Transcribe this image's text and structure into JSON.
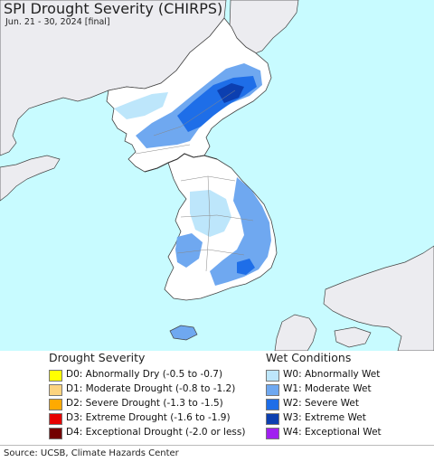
{
  "title": "SPI Drought Severity (CHIRPS)",
  "subtitle": "Jun. 21 - 30, 2024 [final]",
  "colors": {
    "ocean": "#c8fbff",
    "land_outside": "#ececf0",
    "normal": "#ffffff",
    "border": "#444444"
  },
  "legend": {
    "drought": {
      "heading": "Drought Severity",
      "items": [
        {
          "label": "D0: Abnormally Dry (-0.5 to -0.7)",
          "color": "#ffff00"
        },
        {
          "label": "D1: Moderate Drought (-0.8 to -1.2)",
          "color": "#fcd37f"
        },
        {
          "label": "D2: Severe Drought (-1.3 to -1.5)",
          "color": "#ffaa00"
        },
        {
          "label": "D3: Extreme Drought (-1.6 to -1.9)",
          "color": "#e60000"
        },
        {
          "label": "D4: Exceptional Drought (-2.0 or less)",
          "color": "#730000"
        }
      ]
    },
    "wet": {
      "heading": "Wet Conditions",
      "items": [
        {
          "label": "W0: Abnormally Wet",
          "color": "#bde6fb"
        },
        {
          "label": "W1: Moderate Wet",
          "color": "#6fa8f0"
        },
        {
          "label": "W2: Severe Wet",
          "color": "#1e6ee8"
        },
        {
          "label": "W3: Extreme Wet",
          "color": "#0c3fb0"
        },
        {
          "label": "W4: Exceptional Wet",
          "color": "#a020f0"
        }
      ]
    }
  },
  "source": "Source: UCSB, Climate Hazards Center"
}
